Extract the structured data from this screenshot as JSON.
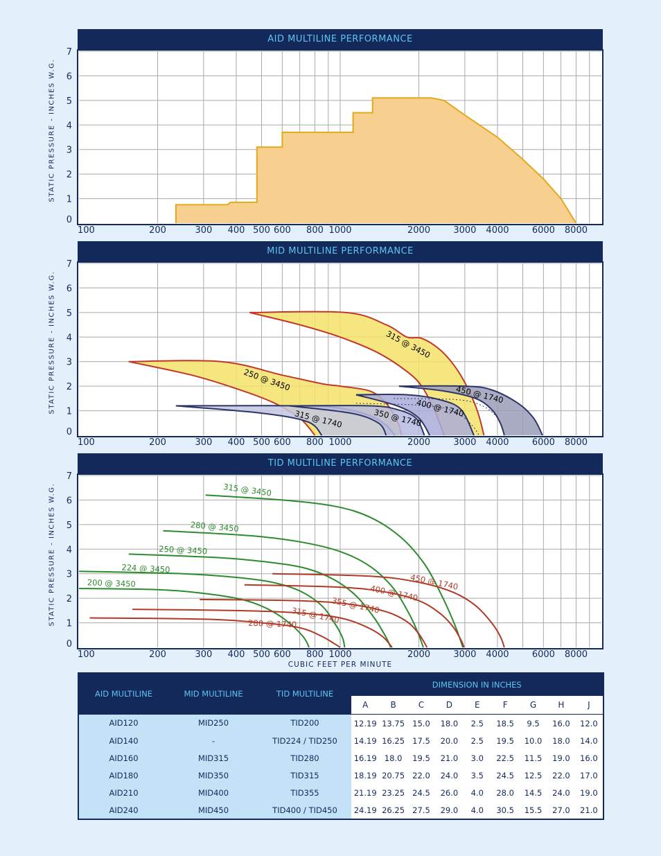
{
  "xlabel": "CUBIC FEET PER MINUTE",
  "ylabel": "STATIC PRESSURE - INCHES W.G.",
  "xticks": [
    "100",
    "200",
    "300",
    "400",
    "500",
    "600",
    "800",
    "1000",
    "2000",
    "3000",
    "4000",
    "6000",
    "8000"
  ],
  "yticks": [
    "0",
    "1",
    "2",
    "3",
    "4",
    "5",
    "6",
    "7"
  ],
  "chart_data": [
    {
      "type": "area",
      "title": "AID MULTILINE PERFORMANCE",
      "xscale": "log",
      "xlim": [
        100,
        10000
      ],
      "ylim": [
        0,
        7
      ],
      "grid": true,
      "series": [
        {
          "name": "",
          "color": "#f7d08f",
          "stroke": "#e4a81c",
          "points": [
            [
              235,
              0
            ],
            [
              235,
              0.75
            ],
            [
              370,
              0.75
            ],
            [
              380,
              0.85
            ],
            [
              480,
              0.85
            ],
            [
              480,
              3.1
            ],
            [
              600,
              3.1
            ],
            [
              600,
              3.7
            ],
            [
              1120,
              3.7
            ],
            [
              1120,
              4.5
            ],
            [
              1330,
              4.5
            ],
            [
              1330,
              5.1
            ],
            [
              2230,
              5.1
            ],
            [
              2500,
              5.0
            ],
            [
              3000,
              4.4
            ],
            [
              4000,
              3.5
            ],
            [
              5000,
              2.6
            ],
            [
              6000,
              1.8
            ],
            [
              7000,
              1.0
            ],
            [
              8000,
              0
            ]
          ]
        }
      ]
    },
    {
      "type": "area",
      "title": "MID MULTILINE PERFORMANCE",
      "xscale": "log",
      "xlim": [
        100,
        10000
      ],
      "ylim": [
        0,
        7
      ],
      "grid": true,
      "series": [
        {
          "name": "315 @ 3450",
          "color": "#f3e26a",
          "stroke": "#c0392b",
          "upper": [
            [
              450,
              5.0
            ],
            [
              1050,
              5.0
            ],
            [
              1500,
              4.5
            ],
            [
              1800,
              4.0
            ],
            [
              2050,
              3.95
            ],
            [
              2400,
              3.5
            ],
            [
              2750,
              2.8
            ],
            [
              3050,
              2.0
            ],
            [
              3350,
              1.0
            ],
            [
              3550,
              0
            ]
          ],
          "lower": [
            [
              450,
              5.0
            ],
            [
              700,
              4.5
            ],
            [
              1000,
              4.0
            ],
            [
              1400,
              3.35
            ],
            [
              1800,
              2.6
            ],
            [
              2050,
              2.0
            ],
            [
              2300,
              1.0
            ],
            [
              2500,
              0
            ]
          ]
        },
        {
          "name": "250 @ 3450",
          "color": "#f3e26a",
          "stroke": "#c0392b",
          "upper": [
            [
              155,
              3.0
            ],
            [
              350,
              3.0
            ],
            [
              600,
              2.45
            ],
            [
              850,
              2.1
            ],
            [
              1000,
              2.0
            ],
            [
              1300,
              1.8
            ],
            [
              1500,
              1.3
            ],
            [
              1650,
              0.6
            ],
            [
              1720,
              0
            ]
          ],
          "lower": [
            [
              155,
              3.0
            ],
            [
              270,
              2.45
            ],
            [
              400,
              1.9
            ],
            [
              550,
              1.35
            ],
            [
              700,
              0.7
            ],
            [
              800,
              0
            ]
          ]
        },
        {
          "name": "315 @ 1740",
          "color": "#c4c7e2",
          "stroke": "#2c3566",
          "upper": [
            [
              235,
              1.2
            ],
            [
              700,
              1.2
            ],
            [
              1000,
              1.1
            ],
            [
              1300,
              0.8
            ],
            [
              1500,
              0.4
            ],
            [
              1620,
              0
            ]
          ],
          "lower": [
            [
              235,
              1.2
            ],
            [
              500,
              0.9
            ],
            [
              750,
              0.55
            ],
            [
              850,
              0
            ]
          ]
        },
        {
          "name": "350 @ 1740",
          "color": "#b6badf",
          "stroke": "#2c3566",
          "upper": [
            [
              640,
              1.2
            ],
            [
              1300,
              1.2
            ],
            [
              1650,
              1.05
            ],
            [
              1950,
              0.7
            ],
            [
              2100,
              0
            ]
          ],
          "lower": [
            [
              640,
              1.2
            ],
            [
              1100,
              0.9
            ],
            [
              1400,
              0.5
            ],
            [
              1500,
              0
            ]
          ]
        },
        {
          "name": "400 @ 1740",
          "color": "#a9acd8",
          "stroke": "#2c3566",
          "upper": [
            [
              1150,
              1.65
            ],
            [
              1800,
              1.65
            ],
            [
              2400,
              1.45
            ],
            [
              2900,
              1.05
            ],
            [
              3250,
              0
            ]
          ],
          "lower": [
            [
              1150,
              1.65
            ],
            [
              1650,
              1.2
            ],
            [
              2000,
              0.7
            ],
            [
              2200,
              0
            ]
          ]
        },
        {
          "name": "450 @ 1740",
          "color": "#9a9db8",
          "stroke": "#2c3566",
          "upper": [
            [
              1680,
              2.0
            ],
            [
              3000,
              2.0
            ],
            [
              3800,
              1.85
            ],
            [
              4800,
              1.3
            ],
            [
              5500,
              0.7
            ],
            [
              5950,
              0
            ]
          ],
          "lower": [
            [
              1680,
              2.0
            ],
            [
              2500,
              1.8
            ],
            [
              3300,
              1.5
            ],
            [
              3800,
              1.05
            ],
            [
              4100,
              0.5
            ],
            [
              4250,
              0
            ]
          ]
        }
      ],
      "dotted": [
        [
          [
            1150,
            1.3
          ],
          [
            2200,
            1.2
          ],
          [
            2800,
            0.9
          ],
          [
            3200,
            0.4
          ],
          [
            3400,
            0
          ]
        ],
        [
          [
            1600,
            1.5
          ],
          [
            2800,
            1.45
          ],
          [
            3500,
            1.2
          ],
          [
            4000,
            0.7
          ],
          [
            4250,
            0
          ]
        ]
      ]
    },
    {
      "type": "line",
      "title": "TID MULTILINE PERFORMANCE",
      "xscale": "log",
      "xlim": [
        100,
        10000
      ],
      "ylim": [
        0,
        7
      ],
      "grid": true,
      "series": [
        {
          "name": "315 @ 3450",
          "color": "#2d8a2d",
          "points": [
            [
              305,
              6.2
            ],
            [
              600,
              6.0
            ],
            [
              950,
              5.75
            ],
            [
              1300,
              5.3
            ],
            [
              1700,
              4.5
            ],
            [
              2100,
              3.4
            ],
            [
              2450,
              2.1
            ],
            [
              2750,
              0.9
            ],
            [
              2950,
              0
            ]
          ]
        },
        {
          "name": "280 @ 3450",
          "color": "#2d8a2d",
          "points": [
            [
              210,
              4.75
            ],
            [
              450,
              4.55
            ],
            [
              700,
              4.3
            ],
            [
              1000,
              3.9
            ],
            [
              1300,
              3.3
            ],
            [
              1600,
              2.4
            ],
            [
              1850,
              1.3
            ],
            [
              2000,
              0.5
            ],
            [
              2080,
              0
            ]
          ]
        },
        {
          "name": "250 @ 3450",
          "color": "#2d8a2d",
          "points": [
            [
              155,
              3.8
            ],
            [
              350,
              3.65
            ],
            [
              550,
              3.45
            ],
            [
              750,
              3.2
            ],
            [
              950,
              2.75
            ],
            [
              1150,
              2.1
            ],
            [
              1350,
              1.2
            ],
            [
              1500,
              0.4
            ],
            [
              1560,
              0
            ]
          ]
        },
        {
          "name": "224 @ 3450",
          "color": "#2d8a2d",
          "points": [
            [
              100,
              3.1
            ],
            [
              250,
              3.0
            ],
            [
              400,
              2.85
            ],
            [
              550,
              2.65
            ],
            [
              700,
              2.3
            ],
            [
              850,
              1.7
            ],
            [
              950,
              1.0
            ],
            [
              1020,
              0.4
            ],
            [
              1040,
              0
            ]
          ]
        },
        {
          "name": "200 @ 3450",
          "color": "#2d8a2d",
          "points": [
            [
              100,
              2.4
            ],
            [
              200,
              2.35
            ],
            [
              300,
              2.2
            ],
            [
              420,
              1.95
            ],
            [
              520,
              1.6
            ],
            [
              620,
              1.1
            ],
            [
              720,
              0.45
            ],
            [
              760,
              0
            ]
          ]
        },
        {
          "name": "450 @ 1740",
          "color": "#b03a26",
          "points": [
            [
              550,
              3.0
            ],
            [
              1300,
              2.9
            ],
            [
              2000,
              2.65
            ],
            [
              2700,
              2.25
            ],
            [
              3300,
              1.7
            ],
            [
              3800,
              1.0
            ],
            [
              4100,
              0.45
            ],
            [
              4250,
              0
            ]
          ]
        },
        {
          "name": "400 @ 1740",
          "color": "#b03a26",
          "points": [
            [
              430,
              2.55
            ],
            [
              1000,
              2.45
            ],
            [
              1500,
              2.25
            ],
            [
              2000,
              1.9
            ],
            [
              2400,
              1.4
            ],
            [
              2700,
              0.85
            ],
            [
              2900,
              0.3
            ],
            [
              2980,
              0
            ]
          ]
        },
        {
          "name": "355 @ 1740",
          "color": "#b03a26",
          "points": [
            [
              290,
              1.95
            ],
            [
              700,
              1.9
            ],
            [
              1100,
              1.75
            ],
            [
              1500,
              1.45
            ],
            [
              1800,
              1.05
            ],
            [
              2000,
              0.55
            ],
            [
              2150,
              0
            ]
          ]
        },
        {
          "name": "315 @ 1740",
          "color": "#b03a26",
          "points": [
            [
              160,
              1.55
            ],
            [
              400,
              1.5
            ],
            [
              700,
              1.4
            ],
            [
              1000,
              1.2
            ],
            [
              1250,
              0.85
            ],
            [
              1450,
              0.45
            ],
            [
              1580,
              0
            ]
          ]
        },
        {
          "name": "280 @ 1740",
          "color": "#b03a26",
          "points": [
            [
              110,
              1.2
            ],
            [
              300,
              1.15
            ],
            [
              500,
              1.0
            ],
            [
              700,
              0.8
            ],
            [
              850,
              0.45
            ],
            [
              950,
              0.15
            ],
            [
              1000,
              0
            ]
          ]
        }
      ]
    }
  ],
  "table": {
    "headers": {
      "aid": "AID MULTILINE",
      "mid": "MID MULTILINE",
      "tid": "TID MULTILINE",
      "dim": "DIMENSION IN INCHES"
    },
    "letters": [
      "A",
      "B",
      "C",
      "D",
      "E",
      "F",
      "G",
      "H",
      "J"
    ],
    "rows": [
      {
        "aid": "AID120",
        "mid": "MID250",
        "tid": "TID200",
        "dims": [
          "12.19",
          "13.75",
          "15.0",
          "18.0",
          "2.5",
          "18.5",
          "9.5",
          "16.0",
          "12.0"
        ]
      },
      {
        "aid": "AID140",
        "mid": "-",
        "tid": "TID224 / TID250",
        "dims": [
          "14.19",
          "16.25",
          "17.5",
          "20.0",
          "2.5",
          "19.5",
          "10.0",
          "18.0",
          "14.0"
        ]
      },
      {
        "aid": "AID160",
        "mid": "MID315",
        "tid": "TID280",
        "dims": [
          "16.19",
          "18.0",
          "19.5",
          "21.0",
          "3.0",
          "22.5",
          "11.5",
          "19.0",
          "16.0"
        ]
      },
      {
        "aid": "AID180",
        "mid": "MID350",
        "tid": "TID315",
        "dims": [
          "18.19",
          "20.75",
          "22.0",
          "24.0",
          "3.5",
          "24.5",
          "12.5",
          "22.0",
          "17.0"
        ]
      },
      {
        "aid": "AID210",
        "mid": "MID400",
        "tid": "TID355",
        "dims": [
          "21.19",
          "23.25",
          "24.5",
          "26.0",
          "4.0",
          "28.0",
          "14.5",
          "24.0",
          "19.0"
        ]
      },
      {
        "aid": "AID240",
        "mid": "MID450",
        "tid": "TID400 / TID450",
        "dims": [
          "24.19",
          "26.25",
          "27.5",
          "29.0",
          "4.0",
          "30.5",
          "15.5",
          "27.0",
          "21.0"
        ]
      }
    ]
  }
}
